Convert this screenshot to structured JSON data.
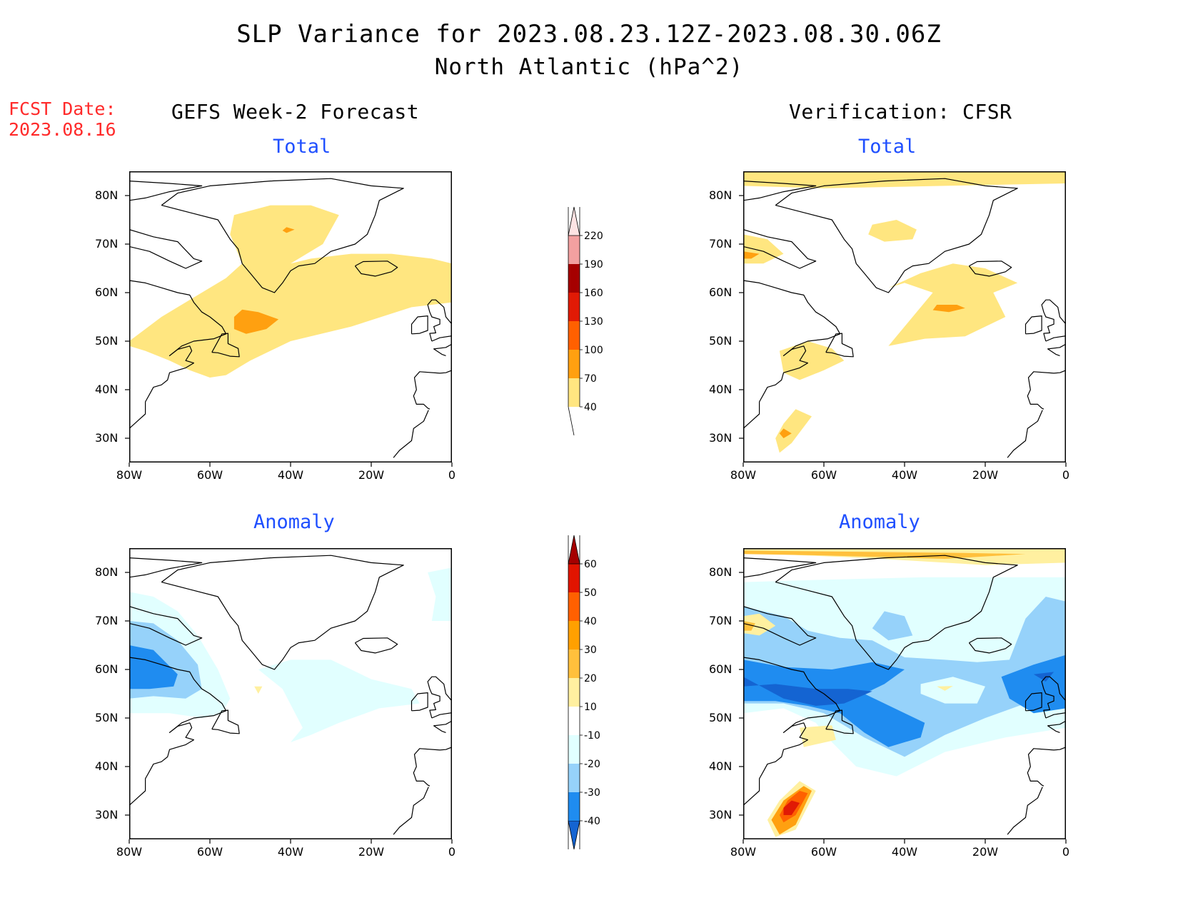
{
  "header": {
    "title": "SLP Variance for 2023.08.23.12Z-2023.08.30.06Z",
    "subtitle": "North Atlantic (hPa^2)",
    "fcst_label": "FCST Date:",
    "fcst_date": "2023.08.16"
  },
  "columns": {
    "left": "GEFS Week-2 Forecast",
    "right": "Verification: CFSR"
  },
  "panels": [
    {
      "id": "fcst-total",
      "label": "Total"
    },
    {
      "id": "verif-total",
      "label": "Total"
    },
    {
      "id": "fcst-anomaly",
      "label": "Anomaly"
    },
    {
      "id": "verif-anomaly",
      "label": "Anomaly"
    }
  ],
  "axes": {
    "lon_labels": [
      "80W",
      "60W",
      "40W",
      "20W",
      "0"
    ],
    "lon_values": [
      -80,
      -60,
      -40,
      -20,
      0
    ],
    "lat_labels": [
      "80N",
      "70N",
      "60N",
      "50N",
      "40N",
      "30N"
    ],
    "lat_values": [
      80,
      70,
      60,
      50,
      40,
      30
    ],
    "lon_range": [
      -80,
      0
    ],
    "lat_range": [
      25,
      85
    ]
  },
  "colorbars": {
    "total": {
      "levels": [
        "40",
        "70",
        "100",
        "130",
        "160",
        "190",
        "220"
      ],
      "colors": [
        "#ffe680",
        "#ffa010",
        "#ff6000",
        "#e11a05",
        "#a50000",
        "#f2a0a0",
        "#fde3e3"
      ]
    },
    "anomaly": {
      "levels": [
        "-40",
        "-30",
        "-20",
        "-10",
        "10",
        "20",
        "30",
        "40",
        "50",
        "60"
      ],
      "colors": [
        "#1464d2",
        "#1f8cf0",
        "#96d2fa",
        "#e1ffff",
        "#ffffff",
        "#fff0a0",
        "#ffc03c",
        "#ffa000",
        "#ff6000",
        "#e11400",
        "#a50000"
      ]
    }
  },
  "map_colors": {
    "yellow": "#ffe680",
    "orange": "#ffa010",
    "darkorange": "#ff6000",
    "red": "#e11a05",
    "darkred": "#a50000",
    "paleyellow": "#fff0a0",
    "lightorange": "#ffc03c",
    "cyan": "#e1ffff",
    "lightblue": "#96d2fa",
    "midblue": "#1f8cf0",
    "darkblue": "#1464d2"
  }
}
